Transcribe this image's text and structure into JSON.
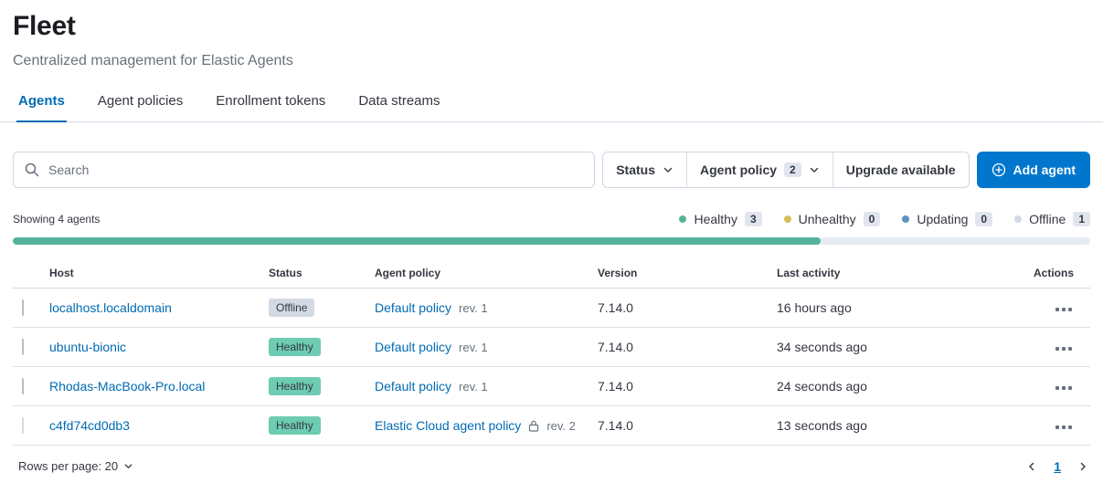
{
  "header": {
    "title": "Fleet",
    "subtitle": "Centralized management for Elastic Agents"
  },
  "tabs": [
    {
      "label": "Agents",
      "active": true
    },
    {
      "label": "Agent policies",
      "active": false
    },
    {
      "label": "Enrollment tokens",
      "active": false
    },
    {
      "label": "Data streams",
      "active": false
    }
  ],
  "toolbar": {
    "search_placeholder": "Search",
    "status_filter_label": "Status",
    "agent_policy_filter_label": "Agent policy",
    "agent_policy_count": "2",
    "upgrade_filter_label": "Upgrade available",
    "add_agent_label": "Add agent"
  },
  "summary": {
    "showing": "Showing 4 agents",
    "healthy_pct": 75,
    "legend": [
      {
        "label": "Healthy",
        "count": "3",
        "color": "#54B399"
      },
      {
        "label": "Unhealthy",
        "count": "0",
        "color": "#D6BF57"
      },
      {
        "label": "Updating",
        "count": "0",
        "color": "#6092C0"
      },
      {
        "label": "Offline",
        "count": "1",
        "color": "#D3DAE6"
      }
    ]
  },
  "table": {
    "headers": {
      "host": "Host",
      "status": "Status",
      "policy": "Agent policy",
      "version": "Version",
      "last_activity": "Last activity",
      "actions": "Actions"
    },
    "rows": [
      {
        "host": "localhost.localdomain",
        "status": "Offline",
        "policy": "Default policy",
        "rev": "rev. 1",
        "version": "7.14.0",
        "last_activity": "16 hours ago",
        "lock_icon": false,
        "checkbox_disabled": false
      },
      {
        "host": "ubuntu-bionic",
        "status": "Healthy",
        "policy": "Default policy",
        "rev": "rev. 1",
        "version": "7.14.0",
        "last_activity": "34 seconds ago",
        "lock_icon": false,
        "checkbox_disabled": false
      },
      {
        "host": "Rhodas-MacBook-Pro.local",
        "status": "Healthy",
        "policy": "Default policy",
        "rev": "rev. 1",
        "version": "7.14.0",
        "last_activity": "24 seconds ago",
        "lock_icon": false,
        "checkbox_disabled": false
      },
      {
        "host": "c4fd74cd0db3",
        "status": "Healthy",
        "policy": "Elastic Cloud agent policy",
        "rev": "rev. 2",
        "version": "7.14.0",
        "last_activity": "13 seconds ago",
        "lock_icon": true,
        "checkbox_disabled": true
      }
    ]
  },
  "footer": {
    "rows_per_page": "Rows per page: 20",
    "page": "1"
  },
  "colors": {
    "primary": "#0077CC",
    "link": "#006BB4",
    "bar_fill": "#54B399"
  }
}
